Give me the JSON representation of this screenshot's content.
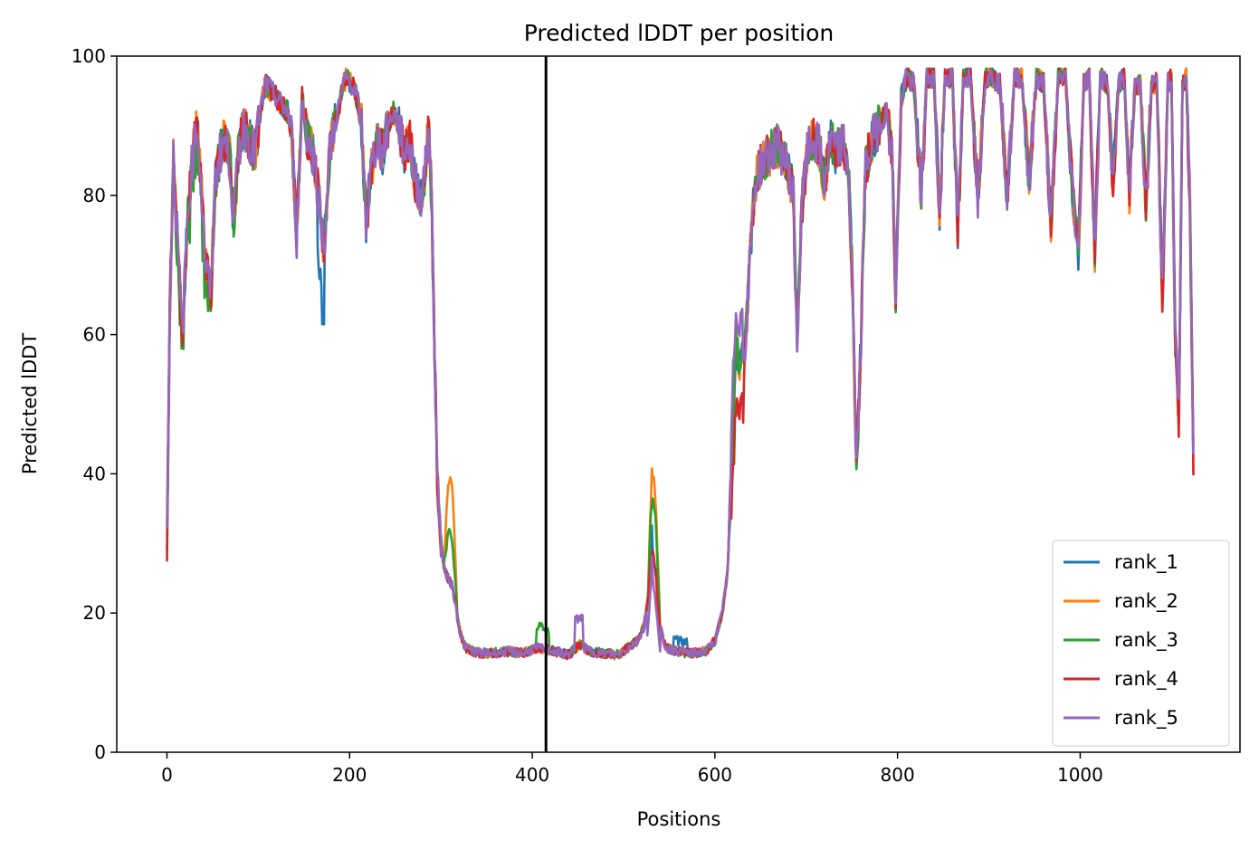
{
  "chart_data": {
    "type": "line",
    "title": "Predicted lDDT per position",
    "xlabel": "Positions",
    "ylabel": "Predicted lDDT",
    "xlim": [
      -55,
      1175
    ],
    "ylim": [
      0,
      100
    ],
    "xticks": [
      0,
      200,
      400,
      600,
      800,
      1000
    ],
    "yticks": [
      0,
      20,
      40,
      60,
      80,
      100
    ],
    "grid": false,
    "legend_position": "lower-right",
    "vline_x": 415,
    "vline_color": "#000000",
    "base_profile": [
      [
        0,
        30
      ],
      [
        3,
        62
      ],
      [
        7,
        86
      ],
      [
        12,
        72
      ],
      [
        17,
        60
      ],
      [
        22,
        76
      ],
      [
        27,
        84
      ],
      [
        32,
        90
      ],
      [
        36,
        85
      ],
      [
        42,
        70
      ],
      [
        48,
        66
      ],
      [
        53,
        82
      ],
      [
        58,
        86
      ],
      [
        63,
        88
      ],
      [
        69,
        85
      ],
      [
        73,
        76
      ],
      [
        78,
        86
      ],
      [
        84,
        90
      ],
      [
        90,
        88
      ],
      [
        96,
        86
      ],
      [
        102,
        92
      ],
      [
        108,
        96
      ],
      [
        114,
        95
      ],
      [
        120,
        94
      ],
      [
        126,
        93
      ],
      [
        132,
        92
      ],
      [
        137,
        88
      ],
      [
        142,
        74
      ],
      [
        148,
        94
      ],
      [
        154,
        88
      ],
      [
        160,
        86
      ],
      [
        166,
        80
      ],
      [
        172,
        72
      ],
      [
        178,
        86
      ],
      [
        184,
        90
      ],
      [
        190,
        94
      ],
      [
        196,
        97
      ],
      [
        202,
        96
      ],
      [
        208,
        94
      ],
      [
        213,
        90
      ],
      [
        218,
        76
      ],
      [
        224,
        84
      ],
      [
        230,
        88
      ],
      [
        236,
        86
      ],
      [
        242,
        90
      ],
      [
        248,
        92
      ],
      [
        254,
        90
      ],
      [
        260,
        86
      ],
      [
        266,
        88
      ],
      [
        272,
        82
      ],
      [
        278,
        80
      ],
      [
        283,
        84
      ],
      [
        287,
        90
      ],
      [
        290,
        78
      ],
      [
        293,
        58
      ],
      [
        296,
        40
      ],
      [
        300,
        30
      ],
      [
        304,
        26
      ],
      [
        308,
        25
      ],
      [
        312,
        24
      ],
      [
        316,
        21
      ],
      [
        321,
        17
      ],
      [
        327,
        15
      ],
      [
        335,
        14.5
      ],
      [
        345,
        14.2
      ],
      [
        360,
        14.3
      ],
      [
        375,
        14.5
      ],
      [
        390,
        14.2
      ],
      [
        405,
        15
      ],
      [
        415,
        14.8
      ],
      [
        425,
        14.5
      ],
      [
        440,
        14
      ],
      [
        452,
        15.5
      ],
      [
        462,
        14.5
      ],
      [
        478,
        14.2
      ],
      [
        494,
        14
      ],
      [
        505,
        15
      ],
      [
        515,
        16
      ],
      [
        522,
        18
      ],
      [
        527,
        22
      ],
      [
        531,
        30
      ],
      [
        535,
        26
      ],
      [
        540,
        18
      ],
      [
        546,
        15
      ],
      [
        560,
        14.5
      ],
      [
        575,
        14.2
      ],
      [
        590,
        14.5
      ],
      [
        600,
        16
      ],
      [
        608,
        20
      ],
      [
        614,
        26
      ],
      [
        618,
        40
      ],
      [
        623,
        58
      ],
      [
        628,
        56
      ],
      [
        634,
        60
      ],
      [
        639,
        72
      ],
      [
        644,
        82
      ],
      [
        652,
        85
      ],
      [
        660,
        86
      ],
      [
        668,
        87
      ],
      [
        674,
        86
      ],
      [
        680,
        84
      ],
      [
        686,
        80
      ],
      [
        690,
        58
      ],
      [
        695,
        78
      ],
      [
        701,
        86
      ],
      [
        707,
        88
      ],
      [
        714,
        87
      ],
      [
        720,
        82
      ],
      [
        727,
        88
      ],
      [
        733,
        86
      ],
      [
        740,
        88
      ],
      [
        746,
        84
      ],
      [
        751,
        66
      ],
      [
        755,
        40
      ],
      [
        760,
        60
      ],
      [
        765,
        84
      ],
      [
        772,
        88
      ],
      [
        780,
        90
      ],
      [
        788,
        92
      ],
      [
        794,
        86
      ],
      [
        798,
        66
      ],
      [
        804,
        94
      ],
      [
        810,
        97
      ],
      [
        818,
        96
      ],
      [
        826,
        80
      ],
      [
        832,
        97
      ],
      [
        840,
        97
      ],
      [
        846,
        77
      ],
      [
        852,
        97
      ],
      [
        860,
        97
      ],
      [
        866,
        75
      ],
      [
        872,
        97
      ],
      [
        880,
        97
      ],
      [
        888,
        80
      ],
      [
        896,
        97
      ],
      [
        904,
        97
      ],
      [
        912,
        96
      ],
      [
        920,
        80
      ],
      [
        928,
        97
      ],
      [
        936,
        97
      ],
      [
        944,
        82
      ],
      [
        952,
        97
      ],
      [
        960,
        96
      ],
      [
        968,
        76
      ],
      [
        976,
        97
      ],
      [
        984,
        97
      ],
      [
        992,
        80
      ],
      [
        998,
        72
      ],
      [
        1004,
        96
      ],
      [
        1010,
        97
      ],
      [
        1016,
        72
      ],
      [
        1022,
        97
      ],
      [
        1030,
        96
      ],
      [
        1036,
        82
      ],
      [
        1042,
        96
      ],
      [
        1048,
        97
      ],
      [
        1054,
        80
      ],
      [
        1060,
        96
      ],
      [
        1066,
        96
      ],
      [
        1072,
        78
      ],
      [
        1078,
        96
      ],
      [
        1084,
        96
      ],
      [
        1090,
        65
      ],
      [
        1096,
        96
      ],
      [
        1100,
        97
      ],
      [
        1104,
        60
      ],
      [
        1108,
        48
      ],
      [
        1112,
        96
      ],
      [
        1116,
        97
      ],
      [
        1120,
        80
      ],
      [
        1124,
        42
      ]
    ],
    "series": [
      {
        "name": "rank_1",
        "color": "#1f77b4"
      },
      {
        "name": "rank_2",
        "color": "#ff7f0e"
      },
      {
        "name": "rank_3",
        "color": "#2ca02c"
      },
      {
        "name": "rank_4",
        "color": "#d62728"
      },
      {
        "name": "rank_5",
        "color": "#9467bd"
      }
    ]
  }
}
